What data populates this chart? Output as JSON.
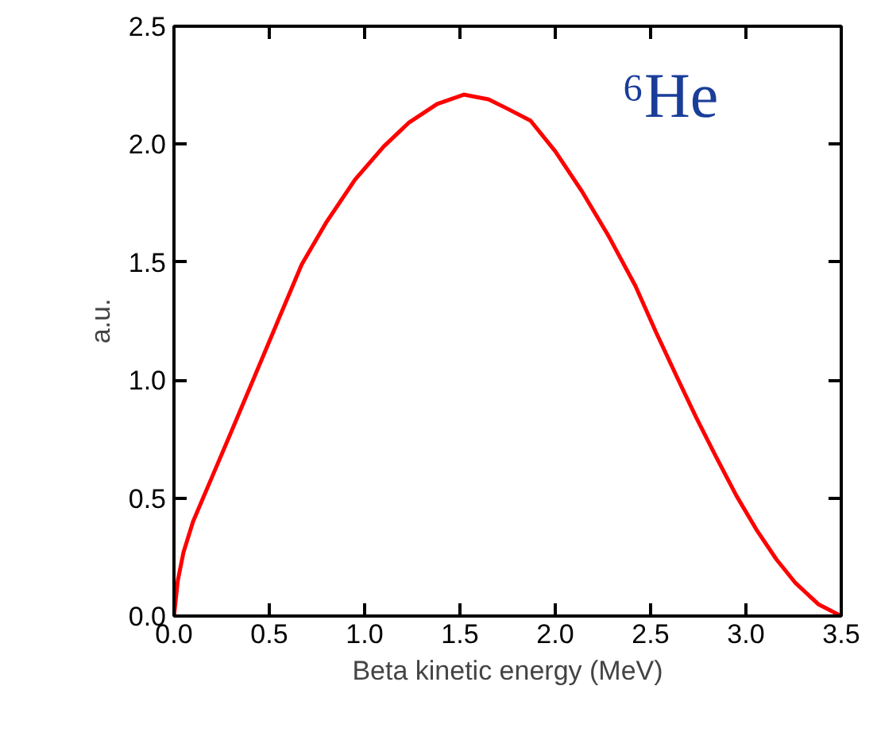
{
  "chart_data": {
    "type": "line",
    "xlabel": "Beta kinetic energy (MeV)",
    "ylabel": "a.u.",
    "annotations": [
      "⁶He"
    ],
    "xlim": [
      0,
      3.5
    ],
    "ylim": [
      0,
      2.5
    ],
    "xticks": [
      {
        "value": 0,
        "label": "0.0"
      },
      {
        "value": 0.5,
        "label": "0.5"
      },
      {
        "value": 1,
        "label": "1.0"
      },
      {
        "value": 1.5,
        "label": "1.5"
      },
      {
        "value": 2,
        "label": "2.0"
      },
      {
        "value": 2.5,
        "label": "2.5"
      },
      {
        "value": 3,
        "label": "3.0"
      },
      {
        "value": 3.5,
        "label": "3.5"
      }
    ],
    "yticks": [
      {
        "value": 0,
        "label": "0.0"
      },
      {
        "value": 0.5,
        "label": "0.5"
      },
      {
        "value": 1,
        "label": "1.0"
      },
      {
        "value": 1.5,
        "label": "1.5"
      },
      {
        "value": 2,
        "label": "2.0"
      },
      {
        "value": 2.5,
        "label": "2.5"
      }
    ],
    "grid": false,
    "marker": "none",
    "line_style": "solid",
    "series": [
      {
        "color": "#ff0000",
        "x": [
          0,
          0.02,
          0.05,
          0.1,
          0.2,
          0.3,
          0.42,
          0.55,
          0.67,
          0.8,
          0.95,
          1.1,
          1.23,
          1.38,
          1.52,
          1.65,
          1.75,
          1.87,
          2.0,
          2.14,
          2.28,
          2.42,
          2.53,
          2.64,
          2.74,
          2.84,
          2.95,
          3.06,
          3.16,
          3.26,
          3.38,
          3.5
        ],
        "values": [
          0,
          0.15,
          0.27,
          0.4,
          0.59,
          0.78,
          1.01,
          1.26,
          1.49,
          1.67,
          1.85,
          1.99,
          2.09,
          2.17,
          2.21,
          2.19,
          2.15,
          2.1,
          1.97,
          1.8,
          1.61,
          1.4,
          1.2,
          1.01,
          0.84,
          0.68,
          0.51,
          0.36,
          0.24,
          0.14,
          0.05,
          0
        ]
      }
    ]
  }
}
